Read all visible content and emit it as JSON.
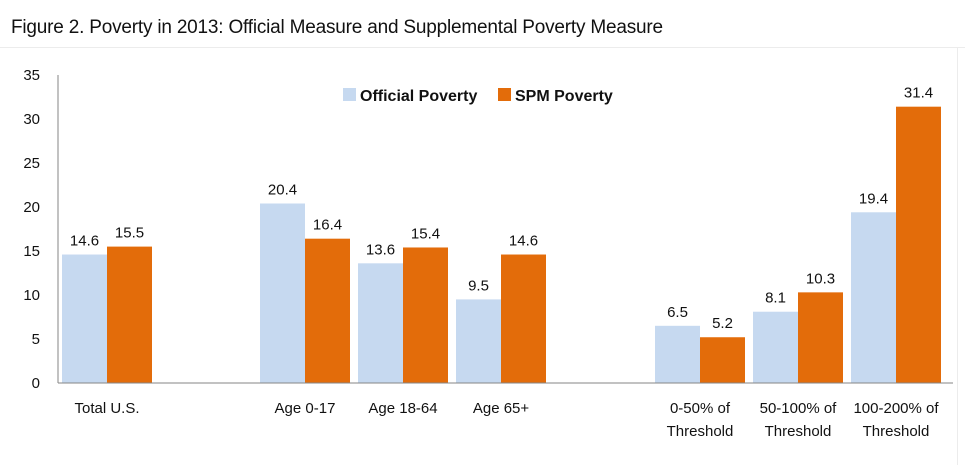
{
  "title": "Figure 2.  Poverty in 2013:  Official Measure and Supplemental Poverty Measure",
  "chart_data": {
    "type": "bar",
    "title": "Figure 2.  Poverty in 2013:  Official Measure and Supplemental Poverty Measure",
    "xlabel": "",
    "ylabel": "",
    "ylim": [
      0,
      35
    ],
    "yticks": [
      0,
      5,
      10,
      15,
      20,
      25,
      30,
      35
    ],
    "grid": false,
    "legend": {
      "position": "top-center",
      "entries": [
        "Official Poverty",
        "SPM Poverty"
      ]
    },
    "categories": [
      [
        "Total U.S."
      ],
      [
        "Age 0-17"
      ],
      [
        "Age 18-64"
      ],
      [
        "Age 65+"
      ],
      [
        "0-50% of",
        "Threshold"
      ],
      [
        "50-100% of",
        "Threshold"
      ],
      [
        "100-200% of",
        "Threshold"
      ]
    ],
    "series": [
      {
        "name": "Official Poverty",
        "color": "#c6d9f0",
        "values": [
          14.6,
          20.4,
          13.6,
          9.5,
          6.5,
          8.1,
          19.4
        ]
      },
      {
        "name": "SPM Poverty",
        "color": "#e36c0a",
        "values": [
          15.5,
          16.4,
          15.4,
          14.6,
          5.2,
          10.3,
          31.4
        ]
      }
    ],
    "data_labels": {
      "Official Poverty": [
        "14.6",
        "20.4",
        "13.6",
        "9.5",
        "6.5",
        "8.1",
        "19.4"
      ],
      "SPM Poverty": [
        "15.5",
        "16.4",
        "15.4",
        "14.6",
        "5.2",
        "10.3",
        "31.4"
      ]
    },
    "axis_color": "#868686"
  }
}
